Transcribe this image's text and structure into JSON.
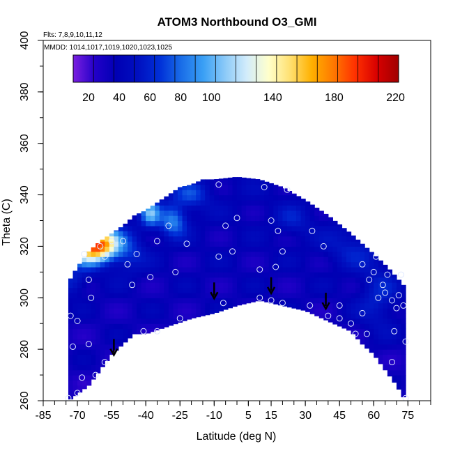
{
  "chart_data": {
    "type": "heatmap",
    "title": "ATOM3 Northbound O3_GMI",
    "flights_label": "Flts: 7,8,9,10,11,12",
    "dates_label": "MMDD: 1014,1017,1019,1020,1023,1025",
    "xlabel": "Latitude (deg N)",
    "ylabel": "Theta (C)",
    "xlim": [
      -85,
      85
    ],
    "ylim": [
      260,
      400
    ],
    "x_ticks": [
      -85,
      -70,
      -55,
      -40,
      -25,
      -10,
      5,
      15,
      30,
      45,
      60,
      75
    ],
    "y_ticks": [
      260,
      280,
      300,
      320,
      340,
      360,
      380,
      400
    ],
    "colorbar": {
      "range": [
        10,
        222
      ],
      "tick_labels": [
        20,
        40,
        60,
        80,
        100,
        140,
        180,
        220
      ],
      "colors": [
        "#7b1fe0",
        "#2200c8",
        "#0000b4",
        "#0010c0",
        "#0030d8",
        "#1a6ee8",
        "#3aa0f5",
        "#8ccaf8",
        "#d2ecfb",
        "#ffffcc",
        "#ffe070",
        "#ffb000",
        "#ff7800",
        "#ff3000",
        "#d80000",
        "#a00000"
      ]
    },
    "field_lat_range": [
      -74,
      74
    ],
    "upper_boundary": [
      [
        -74,
        306
      ],
      [
        -70,
        312
      ],
      [
        -65,
        318
      ],
      [
        -60,
        322
      ],
      [
        -55,
        325
      ],
      [
        -50,
        328
      ],
      [
        -45,
        332
      ],
      [
        -40,
        334
      ],
      [
        -35,
        337
      ],
      [
        -30,
        340
      ],
      [
        -25,
        343
      ],
      [
        -20,
        344
      ],
      [
        -15,
        346
      ],
      [
        -10,
        346
      ],
      [
        0,
        347
      ],
      [
        10,
        346
      ],
      [
        20,
        343
      ],
      [
        30,
        338
      ],
      [
        40,
        332
      ],
      [
        50,
        325
      ],
      [
        60,
        317
      ],
      [
        66,
        312
      ],
      [
        70,
        308
      ],
      [
        74,
        304
      ]
    ],
    "lower_boundary": [
      [
        -74,
        260
      ],
      [
        -65,
        266
      ],
      [
        -60,
        272
      ],
      [
        -55,
        278
      ],
      [
        -50,
        282
      ],
      [
        -45,
        286
      ],
      [
        -40,
        286
      ],
      [
        -30,
        289
      ],
      [
        -20,
        292
      ],
      [
        -10,
        294
      ],
      [
        0,
        297
      ],
      [
        10,
        299
      ],
      [
        20,
        297
      ],
      [
        30,
        295
      ],
      [
        40,
        291
      ],
      [
        50,
        287
      ],
      [
        55,
        282
      ],
      [
        60,
        278
      ],
      [
        65,
        272
      ],
      [
        70,
        266
      ],
      [
        74,
        260
      ]
    ],
    "field_base_value": 35,
    "anomalies": [
      {
        "lat": -60,
        "theta": 321,
        "value": 165,
        "radius_lat": 8,
        "radius_theta": 6
      },
      {
        "lat": -66,
        "theta": 318,
        "value": 95,
        "radius_lat": 7,
        "radius_theta": 6
      },
      {
        "lat": -72,
        "theta": 306,
        "value": 60,
        "radius_lat": 6,
        "radius_theta": 5
      },
      {
        "lat": -38,
        "theta": 333,
        "value": 95,
        "radius_lat": 4,
        "radius_theta": 5
      },
      {
        "lat": -28,
        "theta": 330,
        "value": 85,
        "radius_lat": 6,
        "radius_theta": 6
      },
      {
        "lat": -48,
        "theta": 318,
        "value": 62,
        "radius_lat": 8,
        "radius_theta": 8
      },
      {
        "lat": -20,
        "theta": 340,
        "value": 65,
        "radius_lat": 8,
        "radius_theta": 5
      },
      {
        "lat": 62,
        "theta": 300,
        "value": 58,
        "radius_lat": 9,
        "radius_theta": 14
      },
      {
        "lat": 50,
        "theta": 320,
        "value": 55,
        "radius_lat": 12,
        "radius_theta": 8
      },
      {
        "lat": 25,
        "theta": 330,
        "value": 52,
        "radius_lat": 8,
        "radius_theta": 6
      }
    ],
    "sample_points": [
      [
        -74,
        261
      ],
      [
        -72,
        281
      ],
      [
        -73,
        293
      ],
      [
        -70,
        291
      ],
      [
        -65,
        282
      ],
      [
        -64,
        300
      ],
      [
        -65,
        307
      ],
      [
        -67,
        317
      ],
      [
        -60,
        320
      ],
      [
        -58,
        316
      ],
      [
        -55,
        322
      ],
      [
        -50,
        322
      ],
      [
        -48,
        313
      ],
      [
        -46,
        305
      ],
      [
        -44,
        317
      ],
      [
        -41,
        287
      ],
      [
        -38,
        308
      ],
      [
        -35,
        287
      ],
      [
        -35,
        322
      ],
      [
        -30,
        328
      ],
      [
        -27,
        310
      ],
      [
        -25,
        292
      ],
      [
        -22,
        321
      ],
      [
        -8,
        316
      ],
      [
        -8,
        344
      ],
      [
        -6,
        298
      ],
      [
        -5,
        328
      ],
      [
        -2,
        318
      ],
      [
        0,
        331
      ],
      [
        10,
        300
      ],
      [
        10,
        311
      ],
      [
        12,
        343
      ],
      [
        15,
        330
      ],
      [
        15,
        299
      ],
      [
        17,
        312
      ],
      [
        18,
        326
      ],
      [
        20,
        298
      ],
      [
        20,
        318
      ],
      [
        22,
        342
      ],
      [
        32,
        297
      ],
      [
        33,
        326
      ],
      [
        38,
        320
      ],
      [
        40,
        293
      ],
      [
        45,
        292
      ],
      [
        45,
        297
      ],
      [
        50,
        290
      ],
      [
        52,
        286
      ],
      [
        55,
        313
      ],
      [
        55,
        294
      ],
      [
        57,
        286
      ],
      [
        58,
        307
      ],
      [
        60,
        310
      ],
      [
        61,
        316
      ],
      [
        62,
        300
      ],
      [
        64,
        305
      ],
      [
        65,
        302
      ],
      [
        66,
        309
      ],
      [
        68,
        299
      ],
      [
        68,
        275
      ],
      [
        69,
        287
      ],
      [
        70,
        296
      ],
      [
        71,
        301
      ],
      [
        72,
        309
      ],
      [
        73,
        297
      ],
      [
        74,
        283
      ],
      [
        74,
        261
      ],
      [
        -68,
        269
      ],
      [
        -62,
        270
      ],
      [
        -58,
        275
      ],
      [
        -70,
        263
      ]
    ],
    "arrows": [
      [
        -54,
        278
      ],
      [
        -10,
        300
      ],
      [
        15,
        302
      ],
      [
        39,
        296
      ]
    ]
  }
}
